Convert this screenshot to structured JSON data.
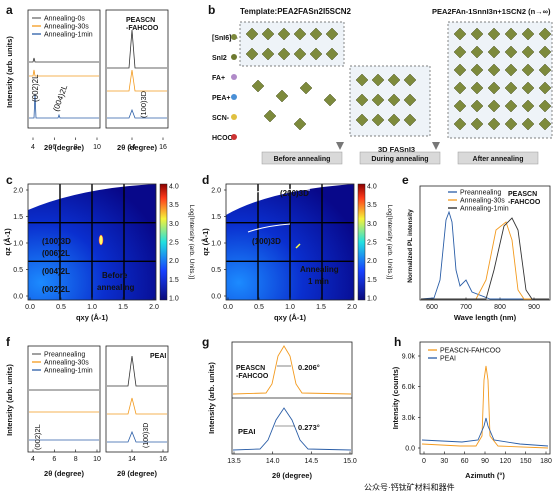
{
  "panels": {
    "a": {
      "label": "a",
      "ylabel": "Intensity (arb. units)",
      "xlabel": "2θ (degree)",
      "left_ticks": [
        "4",
        "6",
        "8",
        "10"
      ],
      "right_ticks": [
        "14",
        "16"
      ],
      "legend": [
        "Annealing-0s",
        "Annealing-30s",
        "Annealing-1min"
      ],
      "inset_text": "PEASCN\n-FAHCOO",
      "peaks": [
        "(002)2L",
        "(004)2L",
        "(100)3D"
      ]
    },
    "b": {
      "label": "b",
      "template": "Template:PEA2FASn2I5SCN2",
      "product": "PEA2FAn-1SnnI3n+1SCN2 (n→∞)",
      "species": [
        "[SnI6]4-",
        "SnI2",
        "FA+",
        "PEA+",
        "SCN-",
        "HCOO-"
      ],
      "mid_label": "3D FASnI3",
      "stages": [
        "Before annealing",
        "During annealing",
        "After annealing"
      ]
    },
    "c": {
      "label": "c",
      "ylabel": "qz (Å-1)",
      "xlabel": "qxy (Å-1)",
      "cbar_label": "Log[Intensity (arb. Units.)]",
      "cbar_ticks": [
        "4.0",
        "3.5",
        "3.0",
        "2.5",
        "2.0",
        "1.5",
        "1.0"
      ],
      "xticks": [
        "0.0",
        "0.5",
        "1.0",
        "1.5",
        "2.0"
      ],
      "yticks": [
        "2.0",
        "1.5",
        "1.0",
        "0.5",
        "0.0"
      ],
      "annotations": [
        "(100)3D",
        "(006)2L",
        "(004)2L",
        "(002)2L"
      ],
      "note": "Before annealing"
    },
    "d": {
      "label": "d",
      "ylabel": "qz (Å-1)",
      "xlabel": "qxy (Å-1)",
      "cbar_label": "Log[Intensity (arb. Units.)]",
      "cbar_ticks": [
        "4.0",
        "3.5",
        "3.0",
        "2.5",
        "2.0",
        "1.5",
        "1.0"
      ],
      "xticks": [
        "0.0",
        "0.5",
        "1.0",
        "1.5",
        "2.0"
      ],
      "yticks": [
        "2.0",
        "1.5",
        "1.0",
        "0.5",
        "0.0"
      ],
      "annotations": [
        "(200)3D",
        "(100)3D"
      ],
      "note": "Annealing 1 min"
    },
    "e": {
      "label": "e",
      "ylabel": "Normalized PL intensity",
      "xlabel": "Wave length (nm)",
      "xticks": [
        "600",
        "700",
        "800",
        "900"
      ],
      "legend": [
        "Preannealing",
        "Annealing-30s",
        "Annealing-1min"
      ],
      "inset_text": "PEASCN\n-FAHCOO"
    },
    "f": {
      "label": "f",
      "ylabel": "Intensity (arb. units)",
      "xlabel": "2θ (degree)",
      "left_ticks": [
        "4",
        "6",
        "8",
        "10"
      ],
      "right_ticks": [
        "14",
        "16"
      ],
      "legend": [
        "Preannealing",
        "Annealing-30s",
        "Annealing-1min"
      ],
      "inset_text": "PEAI",
      "peaks": [
        "(002)2L",
        "(100)3D"
      ]
    },
    "g": {
      "label": "g",
      "ylabel": "Intensity (arb. units)",
      "xlabel": "2θ (degree)",
      "xticks": [
        "13.5",
        "14.0",
        "14.5",
        "15.0"
      ],
      "top_name": "PEASCN\n-FAHCOO",
      "top_fwhm": "0.206°",
      "bottom_name": "PEAI",
      "bottom_fwhm": "0.273°"
    },
    "h": {
      "label": "h",
      "ylabel": "Intensity (counts)",
      "xlabel": "Azimuth (°)",
      "xticks": [
        "0",
        "30",
        "60",
        "90",
        "120",
        "150",
        "180"
      ],
      "yticks": [
        "9.0k",
        "6.0k",
        "3.0k",
        "0.0"
      ],
      "legend": [
        "PEASCN-FAHCOO",
        "PEAI"
      ]
    }
  },
  "colors": {
    "blue": "#2b5ea7",
    "orange": "#f39a1e",
    "gray": "#6d6d6d",
    "black": "#222222"
  },
  "watermark": "公众号·钙钛矿材料和器件"
}
